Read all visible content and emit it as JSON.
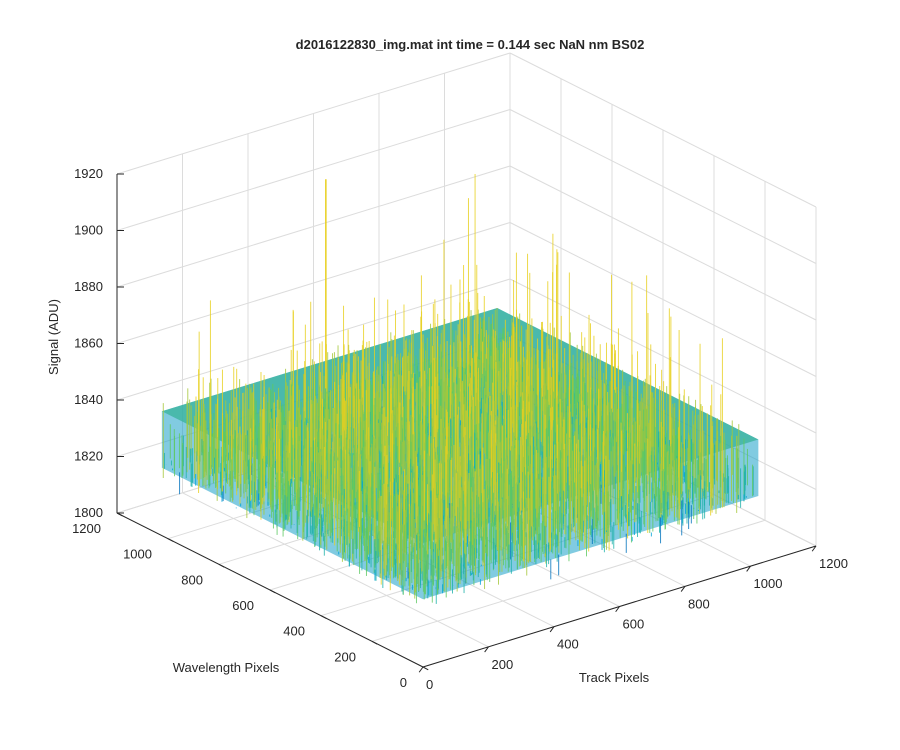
{
  "figure": {
    "background": "#ffffff"
  },
  "chart_data": {
    "type": "surface",
    "title": "d2016122830_img.mat int time = 0.144 sec  NaN nm BS02",
    "xlabel": "Track Pixels",
    "ylabel": "Wavelength Pixels",
    "zlabel": "Signal (ADU)",
    "xlim": [
      0,
      1200
    ],
    "ylim": [
      0,
      1200
    ],
    "zlim": [
      1800,
      1920
    ],
    "x_ticks": [
      "0",
      "200",
      "400",
      "600",
      "800",
      "1000",
      "1200"
    ],
    "y_ticks": [
      "0",
      "200",
      "400",
      "600",
      "800",
      "1000",
      "1200"
    ],
    "z_ticks": [
      "1800",
      "1820",
      "1840",
      "1860",
      "1880",
      "1900",
      "1920"
    ],
    "grid": true,
    "view": "3d-isometric",
    "colormap": [
      "#0072bd",
      "#00a3d9",
      "#20b2aa",
      "#5ec962",
      "#a6c83a",
      "#e8d01f"
    ],
    "data_extent": {
      "x": [
        0,
        1024
      ],
      "y": [
        0,
        1024
      ]
    },
    "z_range_observed": [
      1800,
      1912
    ],
    "z_typical": 1838,
    "z_noise_std": 8,
    "peak_z": 1912
  }
}
